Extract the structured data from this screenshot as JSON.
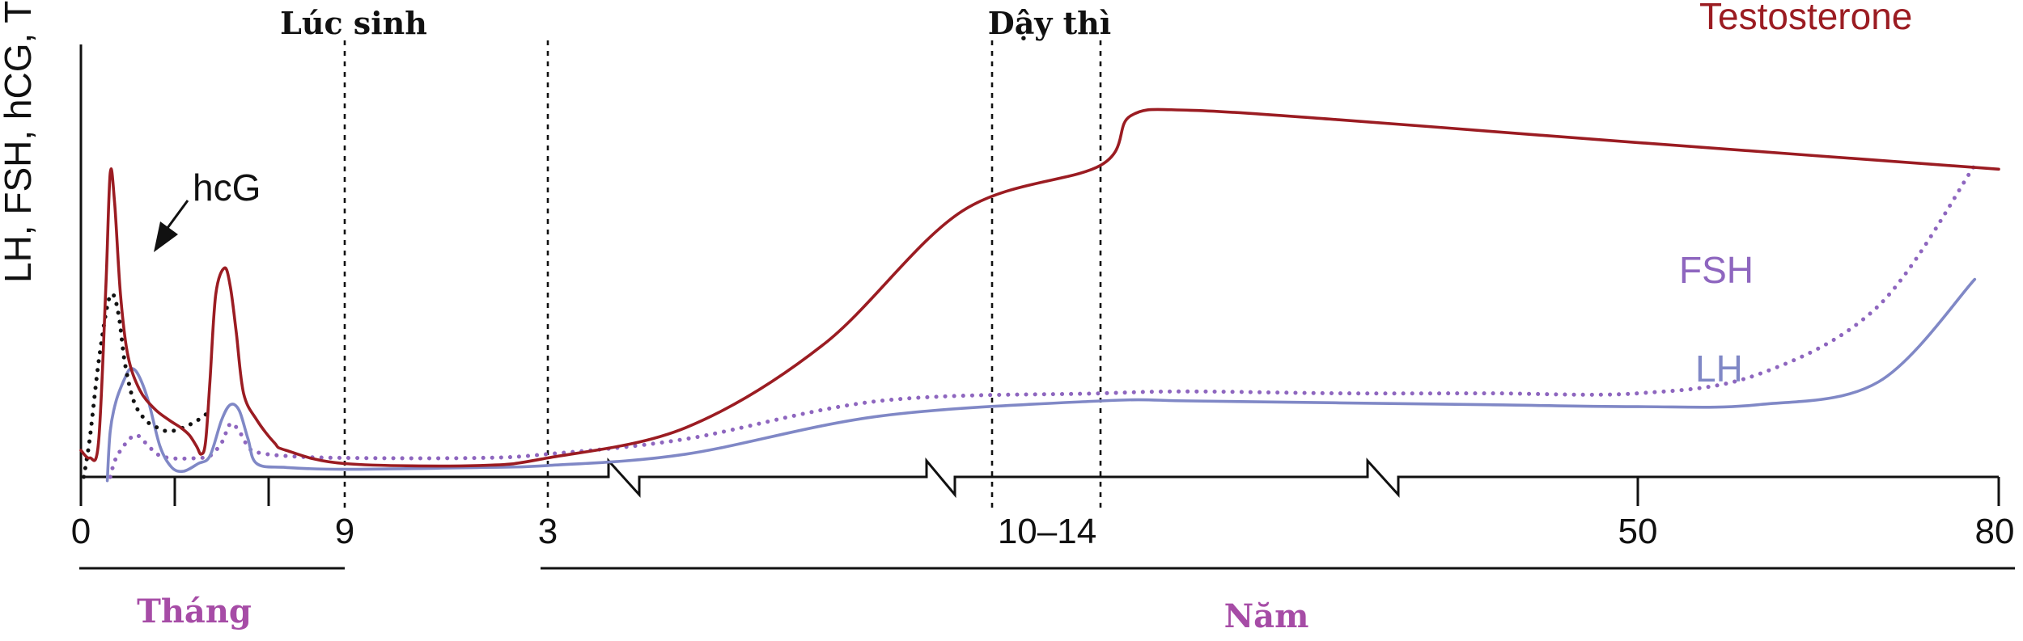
{
  "chart_data": {
    "type": "line",
    "ylabel": "LH, FSH, hCG, T",
    "events": [
      {
        "label": "Lúc sinh"
      },
      {
        "label": "Dậy thì"
      }
    ],
    "x_tick_labels": [
      "0",
      "9",
      "3",
      "10–14",
      "50",
      "80"
    ],
    "period_labels": [
      {
        "label": "Tháng",
        "color": "#a64ca6"
      },
      {
        "label": "Năm",
        "color": "#a64ca6"
      }
    ],
    "series": [
      {
        "name": "Testosterone",
        "color": "#9b1c22",
        "style": "solid",
        "points": [
          [
            0,
            0.07
          ],
          [
            0.3,
            0.05
          ],
          [
            0.6,
            0.09
          ],
          [
            0.85,
            0.5
          ],
          [
            1.0,
            0.8
          ],
          [
            1.15,
            0.72
          ],
          [
            1.35,
            0.48
          ],
          [
            1.6,
            0.32
          ],
          [
            2.0,
            0.23
          ],
          [
            2.5,
            0.18
          ],
          [
            3.0,
            0.15
          ],
          [
            3.4,
            0.13
          ],
          [
            3.7,
            0.11
          ],
          [
            3.95,
            0.08
          ],
          [
            4.1,
            0.06
          ],
          [
            4.25,
            0.09
          ],
          [
            4.4,
            0.25
          ],
          [
            4.6,
            0.48
          ],
          [
            4.9,
            0.55
          ],
          [
            5.1,
            0.5
          ],
          [
            5.3,
            0.38
          ],
          [
            5.55,
            0.22
          ],
          [
            6.0,
            0.15
          ],
          [
            6.6,
            0.09
          ],
          [
            7.0,
            0.07
          ],
          [
            9,
            0.035
          ],
          [
            11,
            0.03
          ],
          [
            12,
            0.05
          ],
          [
            12.5,
            0.13
          ],
          [
            13,
            0.35
          ],
          [
            13.5,
            0.7
          ],
          [
            14,
            0.82
          ],
          [
            16,
            0.95
          ],
          [
            20,
            0.965
          ],
          [
            30,
            0.94
          ],
          [
            40,
            0.91
          ],
          [
            50,
            0.88
          ],
          [
            80,
            0.81
          ]
        ]
      },
      {
        "name": "hcG",
        "color": "#111111",
        "style": "dotted",
        "points": [
          [
            0.1,
            0.0
          ],
          [
            0.3,
            0.1
          ],
          [
            0.6,
            0.3
          ],
          [
            0.9,
            0.45
          ],
          [
            1.1,
            0.48
          ],
          [
            1.3,
            0.42
          ],
          [
            1.5,
            0.3
          ],
          [
            1.8,
            0.2
          ],
          [
            2.2,
            0.15
          ],
          [
            2.6,
            0.13
          ],
          [
            3.0,
            0.12
          ],
          [
            3.5,
            0.13
          ],
          [
            4.0,
            0.15
          ],
          [
            4.35,
            0.17
          ]
        ]
      },
      {
        "name": "LH",
        "color": "#8088c6",
        "style": "solid",
        "points": [
          [
            0.9,
            -0.01
          ],
          [
            1.0,
            0.12
          ],
          [
            1.2,
            0.2
          ],
          [
            1.5,
            0.26
          ],
          [
            1.7,
            0.285
          ],
          [
            1.95,
            0.27
          ],
          [
            2.3,
            0.2
          ],
          [
            2.7,
            0.08
          ],
          [
            3.1,
            0.025
          ],
          [
            3.5,
            0.015
          ],
          [
            4.0,
            0.035
          ],
          [
            4.4,
            0.055
          ],
          [
            4.8,
            0.15
          ],
          [
            5.1,
            0.19
          ],
          [
            5.4,
            0.175
          ],
          [
            5.7,
            0.1
          ],
          [
            6.0,
            0.035
          ],
          [
            7,
            0.025
          ],
          [
            9,
            0.02
          ],
          [
            11,
            0.025
          ],
          [
            12,
            0.03
          ],
          [
            12.5,
            0.06
          ],
          [
            13.2,
            0.16
          ],
          [
            14,
            0.2
          ],
          [
            20,
            0.2
          ],
          [
            30,
            0.195
          ],
          [
            40,
            0.19
          ],
          [
            50,
            0.185
          ],
          [
            60,
            0.19
          ],
          [
            70,
            0.25
          ],
          [
            78,
            0.52
          ]
        ]
      },
      {
        "name": "FSH",
        "color": "#8e66bf",
        "style": "dotted",
        "points": [
          [
            1.0,
            0.0
          ],
          [
            1.2,
            0.05
          ],
          [
            1.6,
            0.095
          ],
          [
            1.9,
            0.11
          ],
          [
            2.2,
            0.09
          ],
          [
            2.6,
            0.06
          ],
          [
            3.0,
            0.05
          ],
          [
            3.5,
            0.048
          ],
          [
            4.0,
            0.05
          ],
          [
            4.4,
            0.055
          ],
          [
            4.8,
            0.09
          ],
          [
            5.1,
            0.14
          ],
          [
            5.4,
            0.12
          ],
          [
            5.7,
            0.08
          ],
          [
            6.0,
            0.065
          ],
          [
            7,
            0.055
          ],
          [
            9,
            0.05
          ],
          [
            11,
            0.05
          ],
          [
            12,
            0.06
          ],
          [
            12.5,
            0.1
          ],
          [
            13.2,
            0.2
          ],
          [
            14,
            0.22
          ],
          [
            20,
            0.225
          ],
          [
            30,
            0.22
          ],
          [
            40,
            0.22
          ],
          [
            50,
            0.22
          ],
          [
            60,
            0.27
          ],
          [
            70,
            0.45
          ],
          [
            78,
            0.82
          ]
        ]
      }
    ]
  }
}
